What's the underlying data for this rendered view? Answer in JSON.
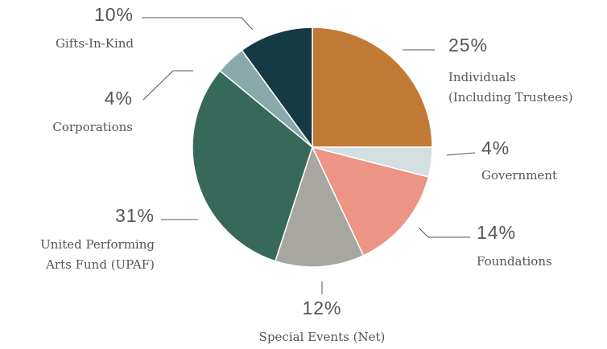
{
  "chart_data": {
    "type": "pie",
    "categories": [
      [
        "Individuals",
        "(Including Trustees)"
      ],
      [
        "Government"
      ],
      [
        "Foundations"
      ],
      [
        "Special Events (Net)"
      ],
      [
        "United Performing",
        "Arts Fund (UPAF)"
      ],
      [
        "Corporations"
      ],
      [
        "Gifts-In-Kind"
      ]
    ],
    "values": [
      25,
      4,
      14,
      12,
      31,
      4,
      10
    ],
    "value_labels": [
      "25%",
      "4%",
      "14%",
      "12%",
      "31%",
      "4%",
      "10%"
    ],
    "colors": [
      "#c07a35",
      "#d6dfe0",
      "#ec9585",
      "#a8a6a0",
      "#36695a",
      "#8aa9ab",
      "#163a45"
    ]
  }
}
